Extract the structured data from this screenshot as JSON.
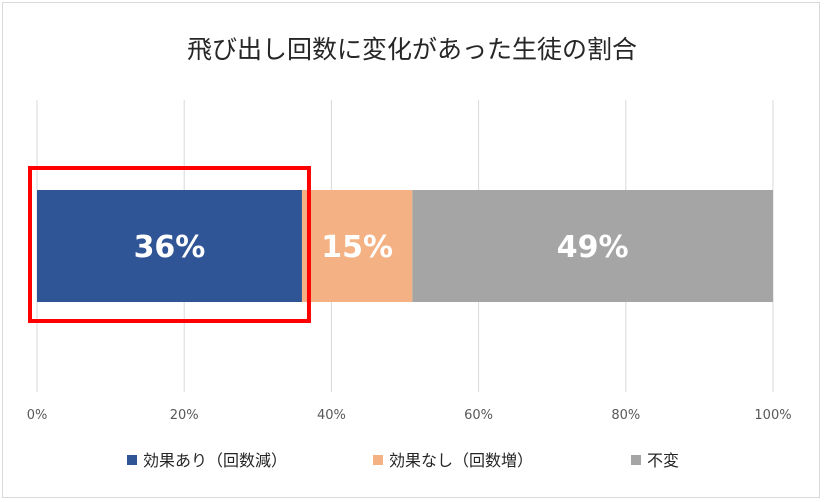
{
  "chart_data": {
    "type": "bar",
    "orientation": "horizontal",
    "stacked": true,
    "percent_stacked": true,
    "title": "飛び出し回数に変化があった生徒の割合",
    "xlabel": "",
    "ylabel": "",
    "xlim": [
      0,
      100
    ],
    "x_ticks": [
      "0%",
      "20%",
      "40%",
      "60%",
      "80%",
      "100%"
    ],
    "grid": "vertical",
    "legend_position": "bottom",
    "series": [
      {
        "name": "効果あり（回数減）",
        "value": 36,
        "label": "36%",
        "color": "#2f5597"
      },
      {
        "name": "効果なし（回数増）",
        "value": 15,
        "label": "15%",
        "color": "#f4b183"
      },
      {
        "name": "不変",
        "value": 49,
        "label": "49%",
        "color": "#a5a5a5"
      }
    ],
    "highlight": {
      "series_index": 0,
      "color": "#ff0000"
    }
  }
}
